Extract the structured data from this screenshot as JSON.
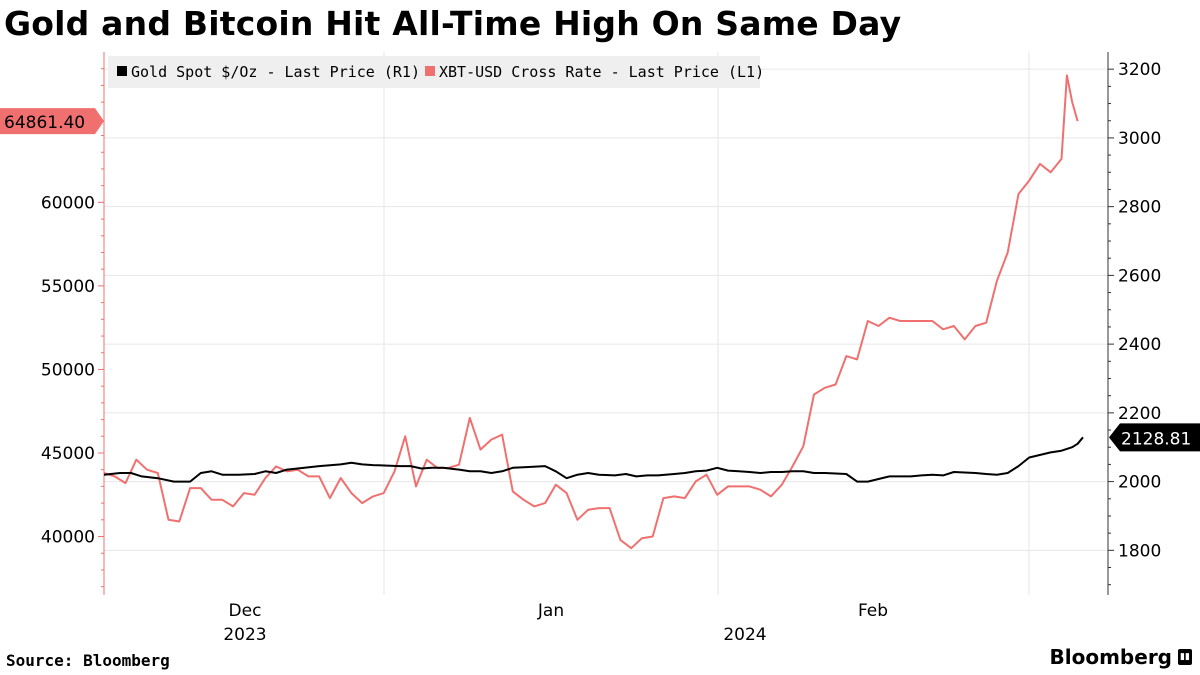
{
  "title": "Gold and Bitcoin Hit All-Time High On Same Day",
  "source": "Source: Bloomberg",
  "brand": "Bloomberg",
  "colors": {
    "gold": "#000000",
    "bitcoin": "#f07070",
    "grid": "#e6e6e6",
    "legend_bg": "#efefef"
  },
  "chart_data": {
    "type": "line",
    "x_tick_labels": [
      {
        "label": "Dec",
        "year": "2023"
      },
      {
        "label": "Jan",
        "year": "2024"
      },
      {
        "label": "Feb",
        "year": ""
      }
    ],
    "left_axis": {
      "ylim": [
        36500,
        69000
      ],
      "ticks": [
        40000,
        45000,
        50000,
        55000,
        60000
      ]
    },
    "right_axis": {
      "ylim": [
        1670,
        3250
      ],
      "ticks": [
        1800,
        2000,
        2200,
        2400,
        2600,
        2800,
        3000,
        3200
      ]
    },
    "legend_placement": "top-left",
    "series": [
      {
        "name": "Gold Spot $/Oz - Last Price (R1)",
        "axis": "right",
        "last_value_label": "2128.81",
        "points": [
          [
            0,
            2020
          ],
          [
            3,
            2025
          ],
          [
            5,
            2025
          ],
          [
            6,
            2020
          ],
          [
            7,
            2015
          ],
          [
            10,
            2010
          ],
          [
            13,
            2000
          ],
          [
            16,
            2000
          ],
          [
            18,
            2025
          ],
          [
            20,
            2030
          ],
          [
            22,
            2020
          ],
          [
            25,
            2020
          ],
          [
            28,
            2022
          ],
          [
            30,
            2030
          ],
          [
            32,
            2025
          ],
          [
            34,
            2035
          ],
          [
            36,
            2038
          ],
          [
            40,
            2045
          ],
          [
            44,
            2050
          ],
          [
            46,
            2055
          ],
          [
            48,
            2050
          ],
          [
            50,
            2048
          ],
          [
            55,
            2045
          ],
          [
            57,
            2045
          ],
          [
            59,
            2038
          ],
          [
            61,
            2040
          ],
          [
            63,
            2040
          ],
          [
            66,
            2035
          ],
          [
            68,
            2030
          ],
          [
            70,
            2030
          ],
          [
            72,
            2025
          ],
          [
            74,
            2030
          ],
          [
            76,
            2040
          ],
          [
            78,
            2042
          ],
          [
            82,
            2045
          ],
          [
            84,
            2030
          ],
          [
            86,
            2010
          ],
          [
            88,
            2020
          ],
          [
            90,
            2025
          ],
          [
            92,
            2020
          ],
          [
            95,
            2018
          ],
          [
            97,
            2022
          ],
          [
            99,
            2015
          ],
          [
            101,
            2018
          ],
          [
            103,
            2018
          ],
          [
            106,
            2022
          ],
          [
            108,
            2025
          ],
          [
            110,
            2030
          ],
          [
            112,
            2032
          ],
          [
            114,
            2040
          ],
          [
            116,
            2032
          ],
          [
            118,
            2030
          ],
          [
            120,
            2028
          ],
          [
            122,
            2025
          ],
          [
            124,
            2028
          ],
          [
            126,
            2028
          ],
          [
            128,
            2030
          ],
          [
            130,
            2030
          ],
          [
            132,
            2025
          ],
          [
            134,
            2025
          ],
          [
            138,
            2022
          ],
          [
            140,
            2000
          ],
          [
            142,
            2000
          ],
          [
            146,
            2015
          ],
          [
            150,
            2015
          ],
          [
            152,
            2018
          ],
          [
            154,
            2020
          ],
          [
            156,
            2018
          ],
          [
            158,
            2028
          ],
          [
            162,
            2025
          ],
          [
            164,
            2022
          ],
          [
            166,
            2020
          ],
          [
            168,
            2025
          ],
          [
            170,
            2045
          ],
          [
            172,
            2070
          ],
          [
            176,
            2085
          ],
          [
            178,
            2090
          ],
          [
            180,
            2100
          ],
          [
            181,
            2110
          ],
          [
            182,
            2128.81
          ]
        ]
      },
      {
        "name": "XBT-USD Cross Rate - Last Price (L1)",
        "axis": "left",
        "last_value_label": "64861.40",
        "points": [
          [
            0,
            43800
          ],
          [
            2,
            43600
          ],
          [
            4,
            43200
          ],
          [
            6,
            44600
          ],
          [
            8,
            44000
          ],
          [
            10,
            43800
          ],
          [
            12,
            41000
          ],
          [
            14,
            40900
          ],
          [
            16,
            42900
          ],
          [
            18,
            42900
          ],
          [
            20,
            42200
          ],
          [
            22,
            42200
          ],
          [
            24,
            41800
          ],
          [
            26,
            42600
          ],
          [
            28,
            42500
          ],
          [
            30,
            43500
          ],
          [
            32,
            44200
          ],
          [
            34,
            43900
          ],
          [
            36,
            44000
          ],
          [
            38,
            43600
          ],
          [
            40,
            43600
          ],
          [
            42,
            42300
          ],
          [
            44,
            43500
          ],
          [
            46,
            42600
          ],
          [
            48,
            42000
          ],
          [
            50,
            42400
          ],
          [
            52,
            42600
          ],
          [
            54,
            43900
          ],
          [
            56,
            46000
          ],
          [
            58,
            43000
          ],
          [
            60,
            44600
          ],
          [
            62,
            44100
          ],
          [
            64,
            44100
          ],
          [
            66,
            44300
          ],
          [
            68,
            47100
          ],
          [
            70,
            45200
          ],
          [
            72,
            45800
          ],
          [
            74,
            46100
          ],
          [
            76,
            42700
          ],
          [
            78,
            42200
          ],
          [
            80,
            41800
          ],
          [
            82,
            42000
          ],
          [
            84,
            43100
          ],
          [
            86,
            42600
          ],
          [
            88,
            41000
          ],
          [
            90,
            41600
          ],
          [
            92,
            41700
          ],
          [
            94,
            41700
          ],
          [
            96,
            39800
          ],
          [
            98,
            39300
          ],
          [
            100,
            39900
          ],
          [
            102,
            40000
          ],
          [
            104,
            42300
          ],
          [
            106,
            42400
          ],
          [
            108,
            42300
          ],
          [
            110,
            43300
          ],
          [
            112,
            43700
          ],
          [
            114,
            42500
          ],
          [
            116,
            43000
          ],
          [
            118,
            43000
          ],
          [
            120,
            43000
          ],
          [
            122,
            42800
          ],
          [
            124,
            42400
          ],
          [
            126,
            43100
          ],
          [
            128,
            44200
          ],
          [
            130,
            45400
          ],
          [
            132,
            48500
          ],
          [
            134,
            48900
          ],
          [
            136,
            49100
          ],
          [
            138,
            50800
          ],
          [
            140,
            50600
          ],
          [
            142,
            52900
          ],
          [
            144,
            52600
          ],
          [
            146,
            53100
          ],
          [
            148,
            52900
          ],
          [
            150,
            52900
          ],
          [
            152,
            52900
          ],
          [
            154,
            52900
          ],
          [
            156,
            52400
          ],
          [
            158,
            52600
          ],
          [
            160,
            51800
          ],
          [
            162,
            52600
          ],
          [
            164,
            52800
          ],
          [
            166,
            55300
          ],
          [
            168,
            57000
          ],
          [
            170,
            60500
          ],
          [
            172,
            61300
          ],
          [
            174,
            62300
          ],
          [
            176,
            61800
          ],
          [
            178,
            62600
          ],
          [
            179,
            67600
          ],
          [
            180,
            66000
          ],
          [
            181,
            64861.4
          ]
        ]
      }
    ]
  }
}
